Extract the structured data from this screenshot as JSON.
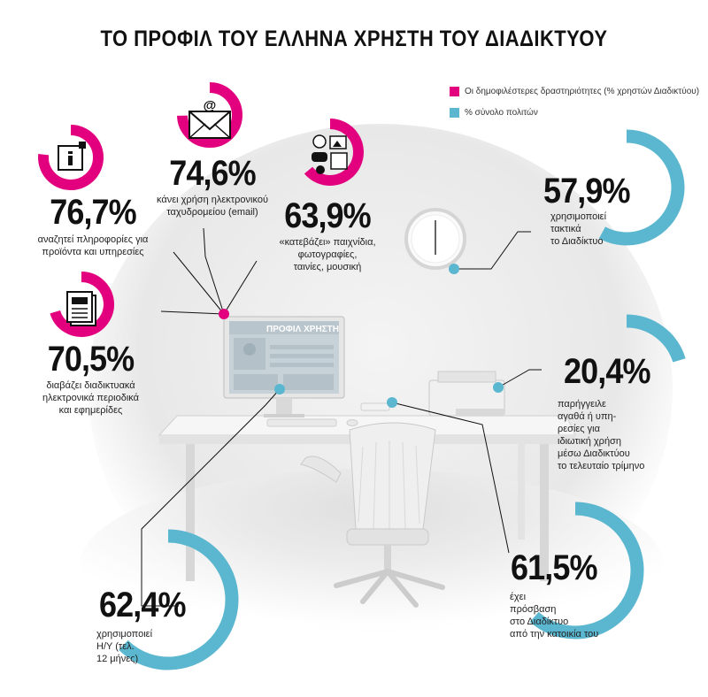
{
  "title": "ΤΟ ΠΡΟΦΙΛ ΤΟΥ ΕΛΛΗΝΑ ΧΡΗΣΤΗ ΤΟΥ ΔΙΑΔΙΚΤΥΟΥ",
  "colors": {
    "pink": "#e3007e",
    "blue": "#5bb7cf"
  },
  "legend": [
    {
      "label": "Οι δημοφιλέστερες δραστηριότητες (% χρηστών Διαδικτύου)",
      "color": "#e3007e"
    },
    {
      "label": "% σύνολο πολιτών",
      "color": "#5bb7cf"
    }
  ],
  "screen_label": "ΠΡΟΦΙΛ ΧΡΗΣΤΗ",
  "stats": {
    "info": {
      "value": "76,7%",
      "percent": 76.7,
      "icon": "info-icon",
      "desc": [
        "αναζητεί πληροφορίες για",
        "προϊόντα και υπηρεσίες"
      ]
    },
    "email": {
      "value": "74,6%",
      "percent": 74.6,
      "icon": "envelope-icon",
      "desc": [
        "κάνει χρήση ηλεκτρονικού",
        "ταχυδρομείου (email)"
      ]
    },
    "download": {
      "value": "63,9%",
      "percent": 63.9,
      "icon": "media-icon",
      "desc": [
        "«κατεβάζει» παιχνίδια,",
        "φωτογραφίες,",
        "ταινίες, μουσική"
      ]
    },
    "news": {
      "value": "70,5%",
      "percent": 70.5,
      "icon": "newspaper-icon",
      "desc": [
        "διαβάζει διαδικτυακά",
        "ηλεκτρονικά περιοδικά",
        "και εφημερίδες"
      ]
    },
    "regular": {
      "value": "57,9%",
      "percent": 57.9,
      "desc": [
        "χρησιμοποιεί",
        "τακτικά",
        "το Διαδίκτυο"
      ]
    },
    "orders": {
      "value": "20,4%",
      "percent": 20.4,
      "desc": [
        "παρήγγειλε",
        "αγαθά ή υπη-",
        "ρεσίες για",
        "ιδιωτική χρήση",
        "μέσω Διαδικτύου",
        "το τελευταίο τρίμηνο"
      ]
    },
    "home": {
      "value": "61,5%",
      "percent": 61.5,
      "desc": [
        "έχει",
        "πρόσβαση",
        "στο Διαδίκτυο",
        "από την κατοικία του"
      ]
    },
    "pc": {
      "value": "62,4%",
      "percent": 62.4,
      "desc": [
        "χρησιμοποιεί",
        "Η/Υ (τελ.",
        "12 μήνες)"
      ]
    }
  }
}
